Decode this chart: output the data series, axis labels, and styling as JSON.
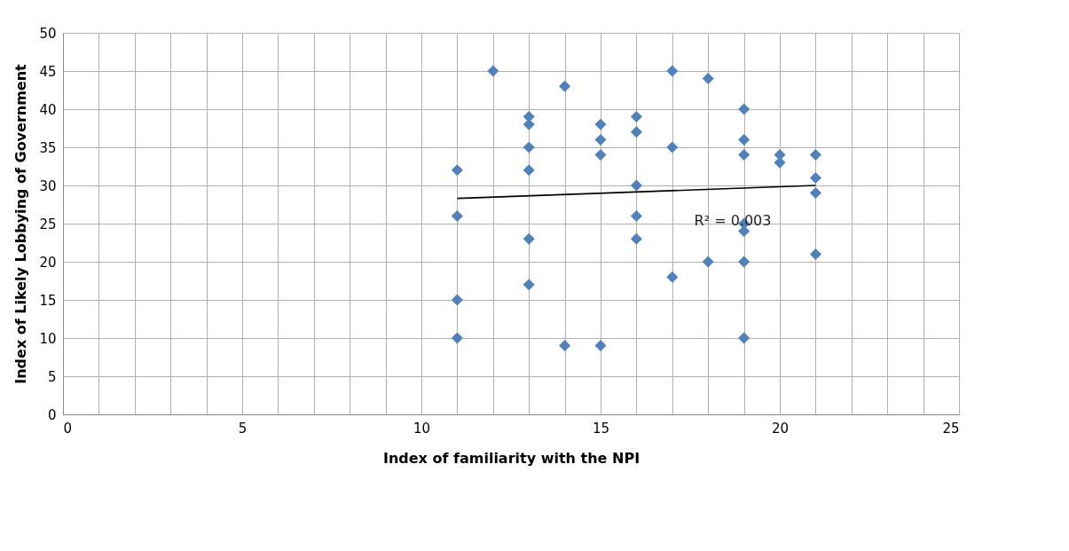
{
  "chart_data": {
    "type": "scatter",
    "xlabel": "Index of familiarity with the NPI",
    "ylabel": "Index of Likely Lobbying of Government",
    "annotations": [
      "R² = 0.003"
    ],
    "series": [
      {
        "color": "#4f81bd",
        "marker": "diamond",
        "x": [
          11,
          11,
          11,
          11,
          12,
          13,
          13,
          13,
          13,
          13,
          13,
          14,
          14,
          15,
          15,
          15,
          15,
          16,
          16,
          16,
          16,
          16,
          17,
          17,
          17,
          18,
          18,
          19,
          19,
          19,
          19,
          19,
          19,
          19,
          20,
          20,
          21,
          21,
          21,
          21
        ],
        "values": [
          32,
          26,
          15,
          10,
          45,
          39,
          38,
          35,
          32,
          23,
          17,
          43,
          9,
          38,
          36,
          34,
          9,
          39,
          37,
          30,
          26,
          23,
          45,
          35,
          18,
          44,
          20,
          40,
          36,
          34,
          25,
          24,
          20,
          10,
          34,
          33,
          34,
          31,
          29,
          21
        ]
      },
      {
        "type": "line",
        "color": "#000000",
        "line_style": "solid",
        "x": [
          11,
          21
        ],
        "values": [
          28.3,
          30.0
        ]
      }
    ],
    "xlim": [
      0,
      25
    ],
    "ylim": [
      0,
      50
    ],
    "xticks": [
      0,
      {
        "value": 1,
        "label": null
      },
      {
        "value": 2,
        "label": null
      },
      {
        "value": 3,
        "label": null
      },
      {
        "value": 4,
        "label": null
      },
      5,
      {
        "value": 6,
        "label": null
      },
      {
        "value": 7,
        "label": null
      },
      {
        "value": 8,
        "label": null
      },
      {
        "value": 9,
        "label": null
      },
      10,
      {
        "value": 11,
        "label": null
      },
      {
        "value": 12,
        "label": null
      },
      {
        "value": 13,
        "label": null
      },
      {
        "value": 14,
        "label": null
      },
      15,
      {
        "value": 16,
        "label": null
      },
      {
        "value": 17,
        "label": null
      },
      {
        "value": 18,
        "label": null
      },
      {
        "value": 19,
        "label": null
      },
      20,
      {
        "value": 21,
        "label": null
      },
      {
        "value": 22,
        "label": null
      },
      {
        "value": 23,
        "label": null
      },
      {
        "value": 24,
        "label": null
      },
      25
    ],
    "yticks": [
      0,
      5,
      10,
      15,
      20,
      25,
      30,
      35,
      40,
      45,
      50
    ],
    "grid": true
  }
}
